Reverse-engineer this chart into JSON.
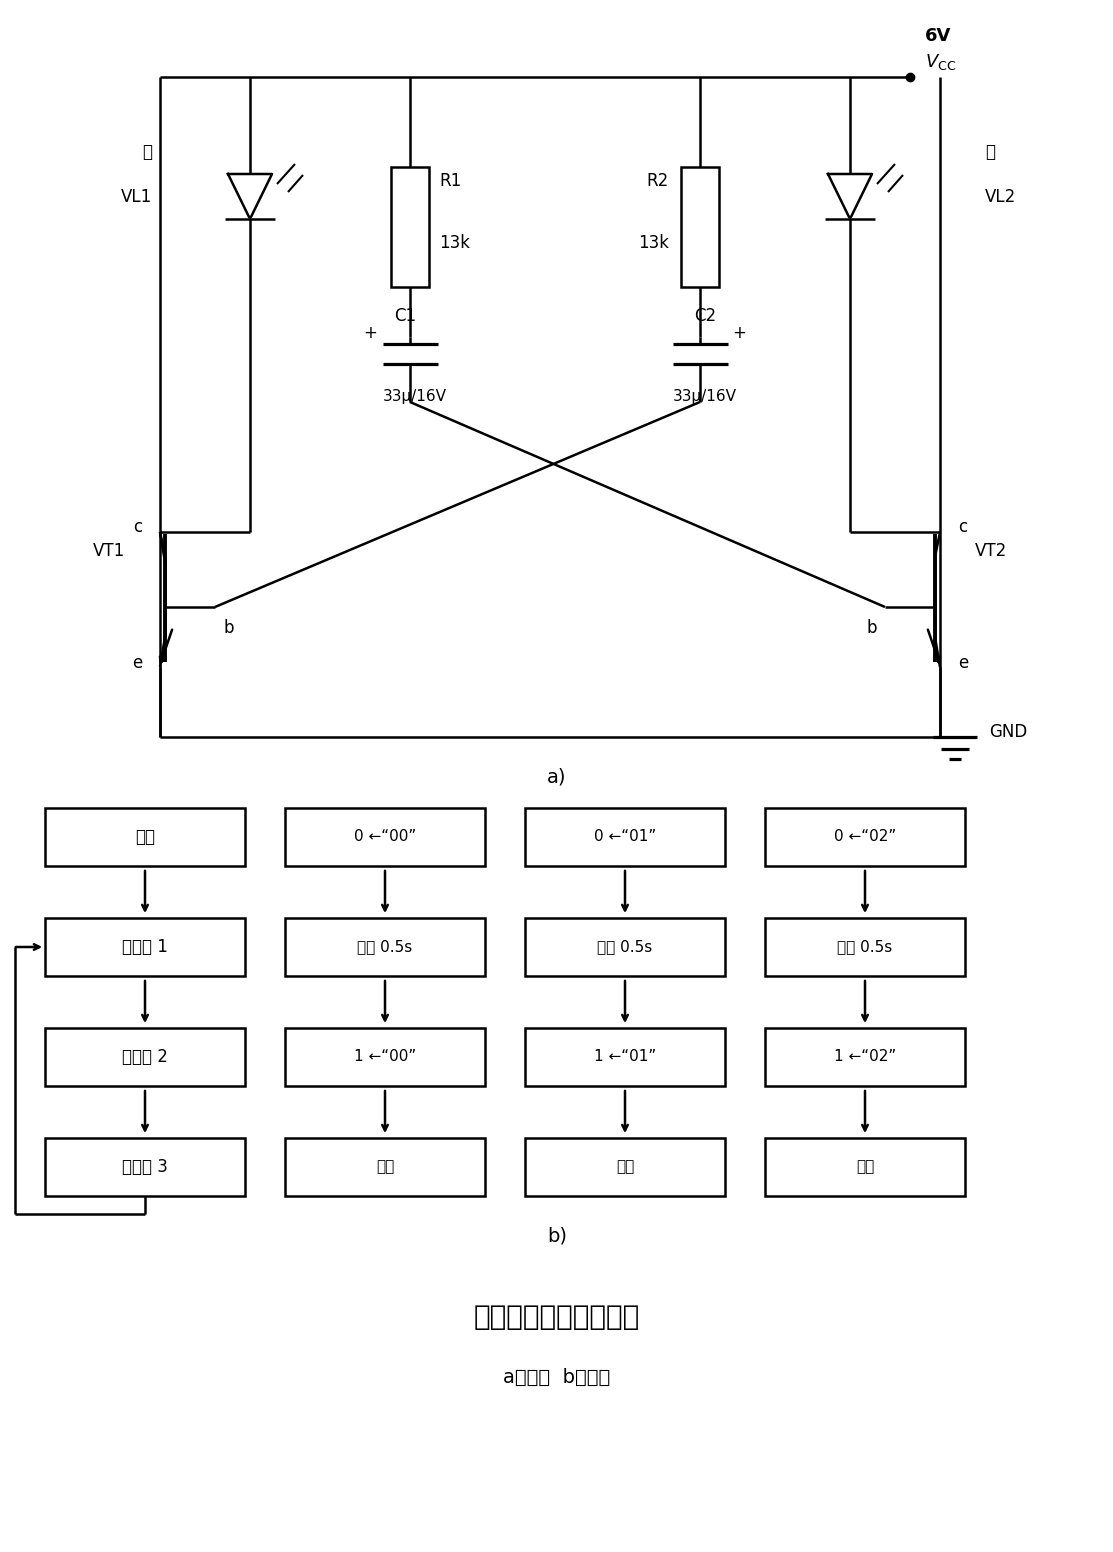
{
  "title": "单片机控制闪光灯电路",
  "subtitle": "a）电路  b）流程",
  "background_color": "#ffffff",
  "vcc_label": "6V",
  "gnd_label": "GND",
  "vl1_label": "VL1",
  "vl2_label": "VL2",
  "hong": "红",
  "r1_top": "R1",
  "r1_bot": "13k",
  "r2_top": "R2",
  "r2_bot": "13k",
  "c1_label": "C1",
  "c2_label": "C2",
  "c1_val": "33μ/16V",
  "c2_val": "33μ/16V",
  "vt1_label": "VT1",
  "vt2_label": "VT2",
  "flow_col1": [
    "开始",
    "子程序 1",
    "子程序 2",
    "子程序 3"
  ],
  "flow_col2": [
    "0 ←“00”",
    "延时 0.5s",
    "1 ←“00”",
    "返回"
  ],
  "flow_col3": [
    "0 ←“01”",
    "延时 0.5s",
    "1 ←“01”",
    "返回"
  ],
  "flow_col4": [
    "0 ←“02”",
    "延时 0.5s",
    "1 ←“02”",
    "返回"
  ]
}
